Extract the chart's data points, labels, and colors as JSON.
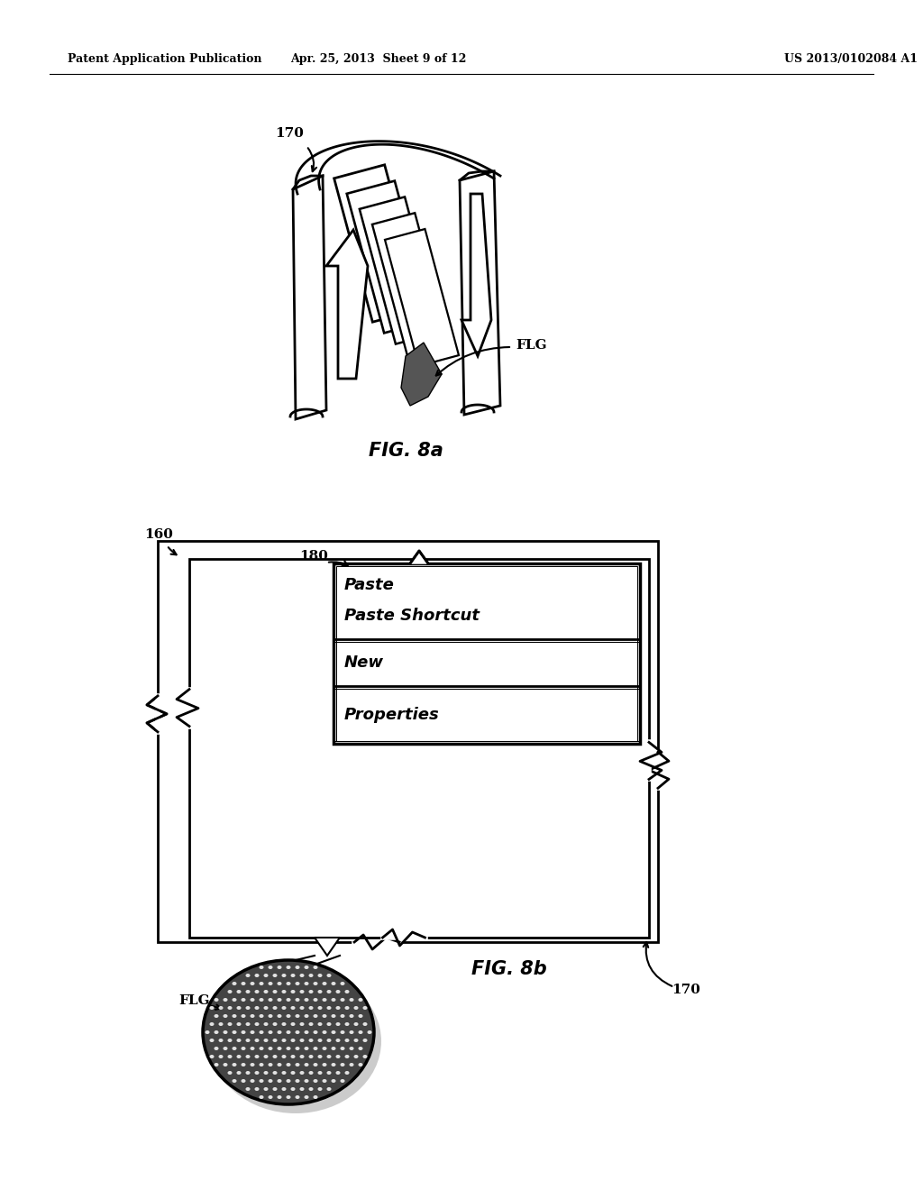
{
  "bg_color": "#ffffff",
  "header_left": "Patent Application Publication",
  "header_mid": "Apr. 25, 2013  Sheet 9 of 12",
  "header_right": "US 2013/0102084 A1",
  "fig8a_label": "FIG. 8a",
  "fig8b_label": "FIG. 8b",
  "label_170_top": "170",
  "label_flg_top": "FLG",
  "label_160": "160",
  "label_180": "180",
  "label_170_bot": "170",
  "label_flg_bot": "FLG",
  "menu_items": [
    "Paste",
    "Paste Shortcut",
    "New",
    "Properties"
  ],
  "font_color": "#000000",
  "line_color": "#000000"
}
